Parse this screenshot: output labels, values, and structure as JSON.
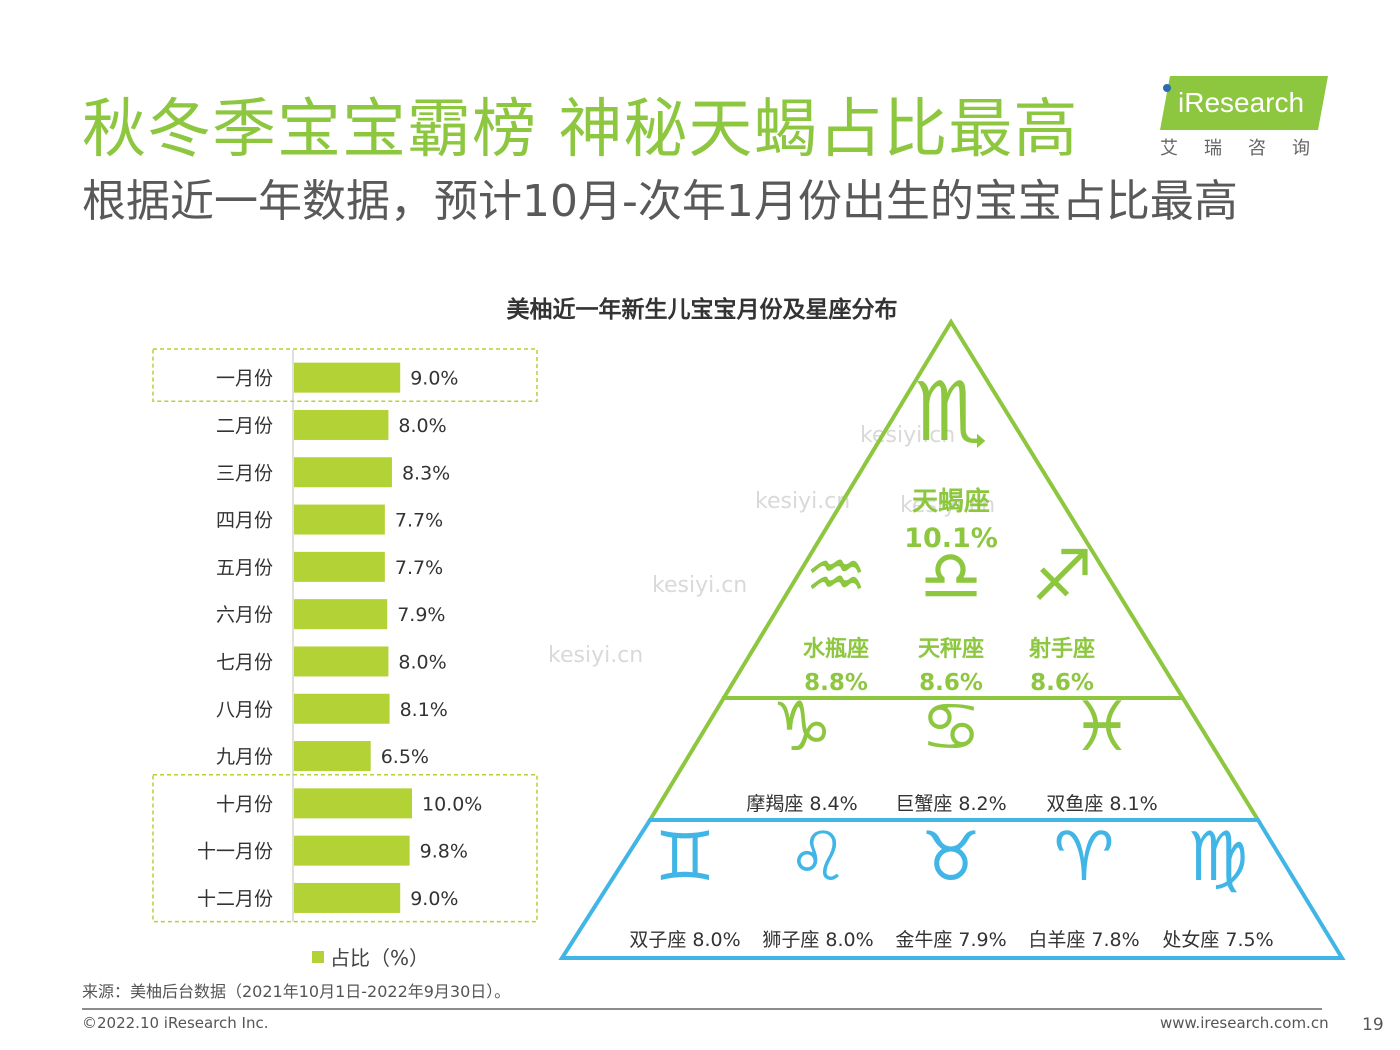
{
  "header": {
    "title": "秋冬季宝宝霸榜 神秘天蝎占比最高",
    "subtitle": "根据近一年数据，预计10月-次年1月份出生的宝宝占比最高"
  },
  "logo": {
    "brand": "iResearch",
    "cn": "艾瑞咨询",
    "color": "#8dc63f"
  },
  "chart_title": "美柚近一年新生儿宝宝月份及星座分布",
  "chart_data": [
    {
      "type": "bar",
      "orientation": "horizontal",
      "categories": [
        "一月份",
        "二月份",
        "三月份",
        "四月份",
        "五月份",
        "六月份",
        "七月份",
        "八月份",
        "九月份",
        "十月份",
        "十一月份",
        "十二月份"
      ],
      "series": [
        {
          "name": "占比（%）",
          "values": [
            9.0,
            8.0,
            8.3,
            7.7,
            7.7,
            7.9,
            8.0,
            8.1,
            6.5,
            10.0,
            9.8,
            9.0
          ]
        }
      ],
      "value_labels": [
        "9.0%",
        "8.0%",
        "8.3%",
        "7.7%",
        "7.7%",
        "7.9%",
        "8.0%",
        "8.1%",
        "6.5%",
        "10.0%",
        "9.8%",
        "9.0%"
      ],
      "highlighted": [
        "一月份",
        "十月份",
        "十一月份",
        "十二月份"
      ],
      "bar_color": "#b3d235",
      "grid": false,
      "legend": "bottom"
    },
    {
      "type": "pyramid",
      "tiers": [
        {
          "color": "#8dc63f",
          "items": [
            {
              "name": "天蝎座",
              "value": 10.1,
              "label": "10.1%",
              "icon": "scorpio-icon",
              "glyph": "♏"
            }
          ]
        },
        {
          "color": "#8dc63f",
          "items": [
            {
              "name": "水瓶座",
              "value": 8.8,
              "label": "8.8%",
              "icon": "aquarius-icon",
              "glyph": "♒"
            },
            {
              "name": "天秤座",
              "value": 8.6,
              "label": "8.6%",
              "icon": "libra-icon",
              "glyph": "♎"
            },
            {
              "name": "射手座",
              "value": 8.6,
              "label": "8.6%",
              "icon": "sagittarius-icon",
              "glyph": "♐"
            }
          ]
        },
        {
          "color": "#8dc63f",
          "items": [
            {
              "name": "摩羯座",
              "value": 8.4,
              "label": "摩羯座 8.4%",
              "icon": "capricorn-icon",
              "glyph": "♑"
            },
            {
              "name": "巨蟹座",
              "value": 8.2,
              "label": "巨蟹座 8.2%",
              "icon": "cancer-icon",
              "glyph": "♋"
            },
            {
              "name": "双鱼座",
              "value": 8.1,
              "label": "双鱼座 8.1%",
              "icon": "pisces-icon",
              "glyph": "♓"
            }
          ]
        },
        {
          "color": "#41b6e6",
          "items": [
            {
              "name": "双子座",
              "value": 8.0,
              "label": "双子座 8.0%",
              "icon": "gemini-icon",
              "glyph": "♊"
            },
            {
              "name": "狮子座",
              "value": 8.0,
              "label": "狮子座 8.0%",
              "icon": "leo-icon",
              "glyph": "♌"
            },
            {
              "name": "金牛座",
              "value": 7.9,
              "label": "金牛座 7.9%",
              "icon": "taurus-icon",
              "glyph": "♉"
            },
            {
              "name": "白羊座",
              "value": 7.8,
              "label": "白羊座 7.8%",
              "icon": "aries-icon",
              "glyph": "♈"
            },
            {
              "name": "处女座",
              "value": 7.5,
              "label": "处女座 7.5%",
              "icon": "virgo-icon",
              "glyph": "♍"
            }
          ]
        }
      ]
    }
  ],
  "legend": {
    "label": "占比（%）"
  },
  "watermark": "kesiyi.cn",
  "footer": {
    "source": "来源：美柚后台数据（2021年10月1日-2022年9月30日）。",
    "copyright": "©2022.10 iResearch Inc.",
    "site": "www.iresearch.com.cn",
    "page": "19"
  }
}
